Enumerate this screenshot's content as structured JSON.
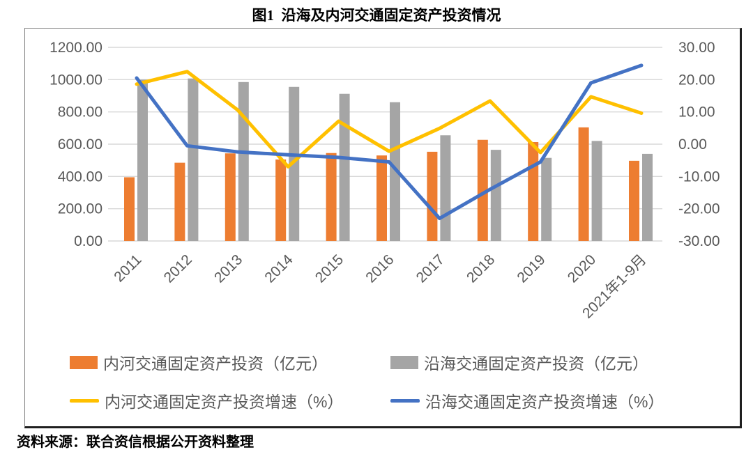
{
  "title": "图1  沿海及内河交通固定资产投资情况",
  "source": "资料来源：联合资信根据公开资料整理",
  "colors": {
    "inland_bar": "#ED7D31",
    "coastal_bar": "#A5A5A5",
    "inland_line": "#FFC000",
    "coastal_line": "#4472C4",
    "gridline": "#D9D9D9",
    "axis_text": "#595959",
    "frame_border": "#7f7f7f"
  },
  "chart_data": {
    "type": "bar+line combo",
    "categories": [
      "2011",
      "2012",
      "2013",
      "2014",
      "2015",
      "2016",
      "2017",
      "2018",
      "2019",
      "2020",
      "2021年1-9月"
    ],
    "series": [
      {
        "name": "内河交通固定资产投资（亿元）",
        "type": "bar",
        "axis": "left",
        "color": "#ED7D31",
        "values": [
          395,
          485,
          543,
          505,
          545,
          530,
          553,
          627,
          613,
          704,
          497
        ]
      },
      {
        "name": "沿海交通固定资产投资（亿元）",
        "type": "bar",
        "axis": "left",
        "color": "#A5A5A5",
        "values": [
          1000,
          1007,
          985,
          955,
          912,
          860,
          655,
          565,
          515,
          620,
          540
        ]
      },
      {
        "name": "内河交通固定资产投资增速（%）",
        "type": "line",
        "axis": "right",
        "color": "#FFC000",
        "values": [
          18.6,
          22.5,
          10.6,
          -7.0,
          7.1,
          -2.2,
          4.9,
          13.4,
          -2.6,
          14.7,
          9.6
        ]
      },
      {
        "name": "沿海交通固定资产投资增速（%）",
        "type": "line",
        "axis": "right",
        "color": "#4472C4",
        "values": [
          20.5,
          -0.5,
          -2.4,
          -3.3,
          -4.1,
          -5.5,
          -23.0,
          -14.0,
          -5.5,
          19.0,
          24.4
        ]
      }
    ],
    "left_axis": {
      "ticks": [
        "1200.00",
        "1000.00",
        "800.00",
        "600.00",
        "400.00",
        "200.00",
        "0.00"
      ],
      "min": 0,
      "max": 1200
    },
    "right_axis": {
      "ticks": [
        "30.00",
        "20.00",
        "10.00",
        "0.00",
        "-10.00",
        "-20.00",
        "-30.00"
      ],
      "min": -30,
      "max": 30
    },
    "grid": true,
    "legend_position": "bottom"
  }
}
